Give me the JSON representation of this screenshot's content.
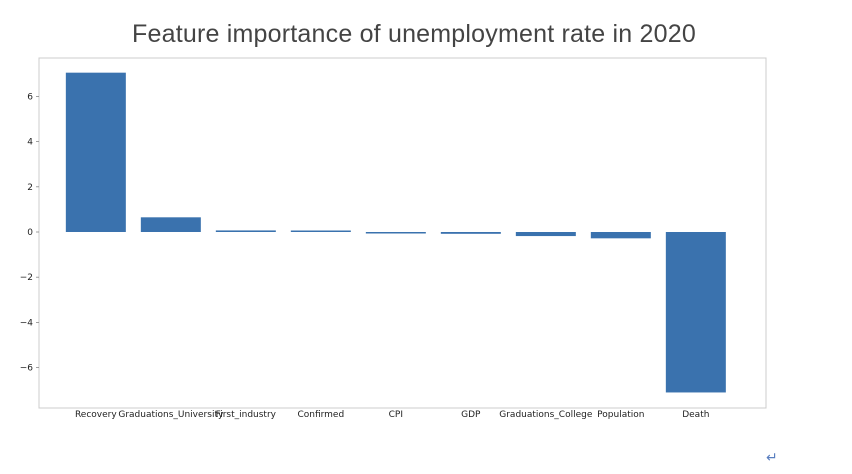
{
  "chart_data": {
    "type": "bar",
    "title": "Feature importance of unemployment rate in 2020",
    "xlabel": "",
    "ylabel": "",
    "categories": [
      "Recovery",
      "Graduations_University",
      "First_industry",
      "Confirmed",
      "CPI",
      "GDP",
      "Graduations_College",
      "Population",
      "Death"
    ],
    "values": [
      7.05,
      0.65,
      0.07,
      0.06,
      -0.03,
      -0.08,
      -0.18,
      -0.28,
      -7.1
    ],
    "ylim": [
      -7.8,
      7.6
    ],
    "yticks": [
      -6,
      -4,
      -2,
      0,
      2,
      4,
      6
    ],
    "ytick_labels": [
      "−6",
      "−4",
      "−2",
      "0",
      "2",
      "4",
      "6"
    ],
    "bar_color": "#3a72ae",
    "grid": false,
    "legend": "none"
  },
  "decor": {
    "return_symbol": "↵"
  }
}
